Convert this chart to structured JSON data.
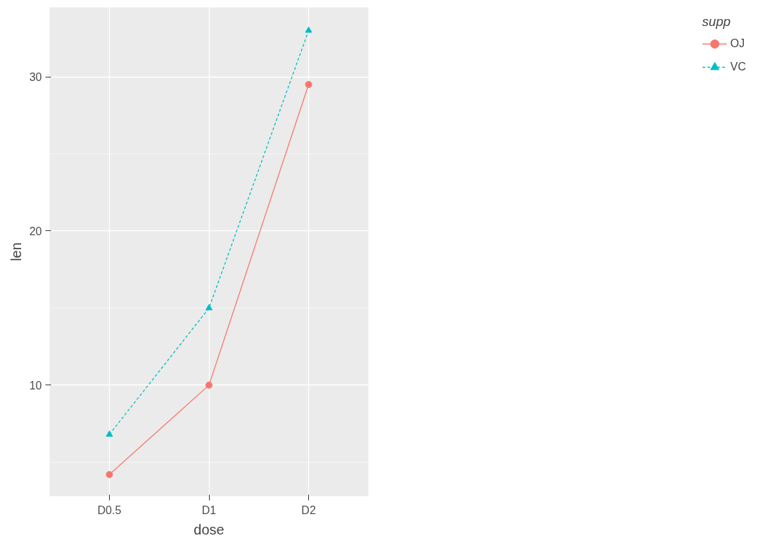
{
  "chart_data": {
    "type": "line",
    "xlabel": "dose",
    "ylabel": "len",
    "legend_title": "supp",
    "categories": [
      "D0.5",
      "D1",
      "D2"
    ],
    "series": [
      {
        "name": "OJ",
        "color": "#f8766d",
        "values": [
          4.2,
          10,
          29.5
        ],
        "marker": "circle",
        "line_style": "solid"
      },
      {
        "name": "VC",
        "color": "#00bfc4",
        "values": [
          6.8,
          15,
          33
        ],
        "marker": "triangle",
        "line_style": "dashed"
      }
    ],
    "ylim": [
      2.8,
      34.5
    ],
    "yticks": [
      10,
      20,
      30
    ],
    "grid": true,
    "legend": "right"
  }
}
